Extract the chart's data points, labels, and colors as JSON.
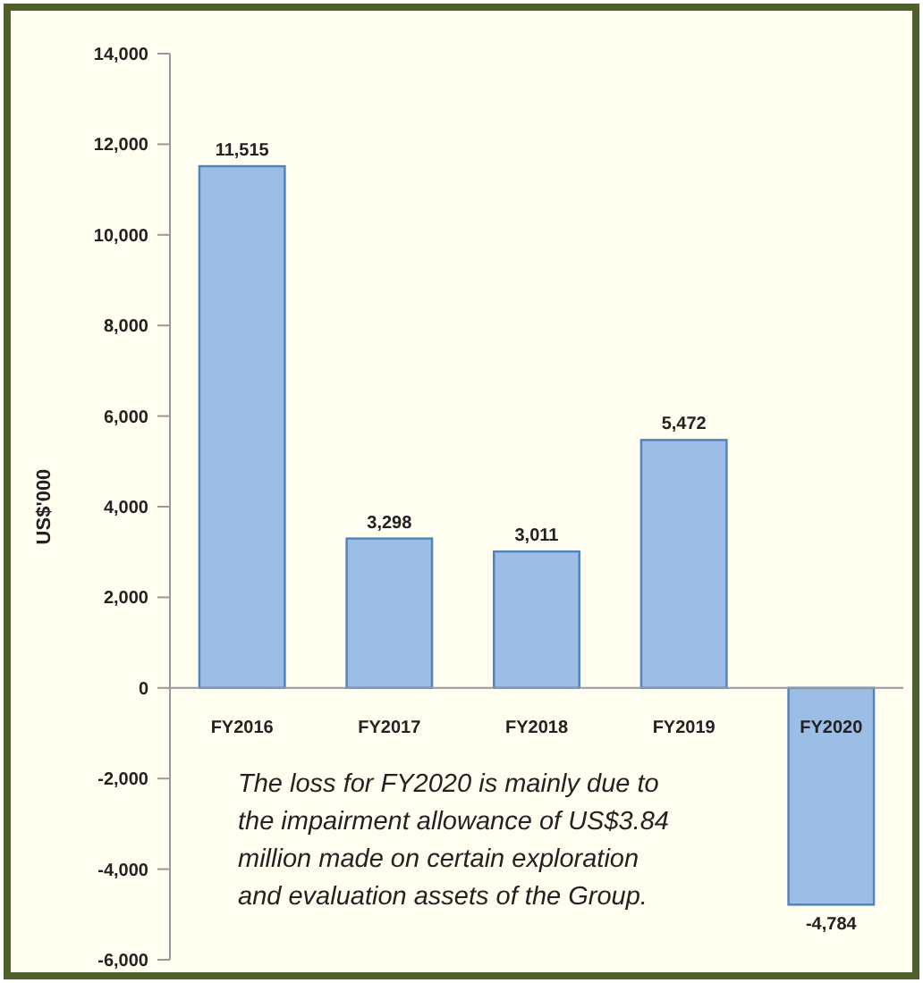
{
  "chart_data": {
    "type": "bar",
    "ylabel": "US$'000",
    "categories": [
      "FY2016",
      "FY2017",
      "FY2018",
      "FY2019",
      "FY2020"
    ],
    "values": [
      11515,
      3298,
      3011,
      5472,
      -4784
    ],
    "color": "#9cbde6",
    "ylim": [
      -6000,
      14000
    ],
    "yticks": [
      {
        "value": -6000,
        "label": "-6,000"
      },
      {
        "value": -4000,
        "label": "-4,000"
      },
      {
        "value": -2000,
        "label": "-2,000"
      },
      0,
      {
        "value": 2000,
        "label": "2,000"
      },
      {
        "value": 4000,
        "label": "4,000"
      },
      {
        "value": 6000,
        "label": "6,000"
      },
      {
        "value": 8000,
        "label": "8,000"
      },
      {
        "value": 10000,
        "label": "10,000"
      },
      {
        "value": 12000,
        "label": "12,000"
      },
      {
        "value": 14000,
        "label": "14,000"
      }
    ],
    "value_labels": [
      "11,515",
      "3,298",
      "3,011",
      "5,472",
      "-4,784"
    ],
    "grid": false,
    "annotations": [
      "The loss for FY2020 is mainly due to the impairment allowance of US$3.84 million made on certain exploration and evaluation assets of the Group."
    ]
  }
}
